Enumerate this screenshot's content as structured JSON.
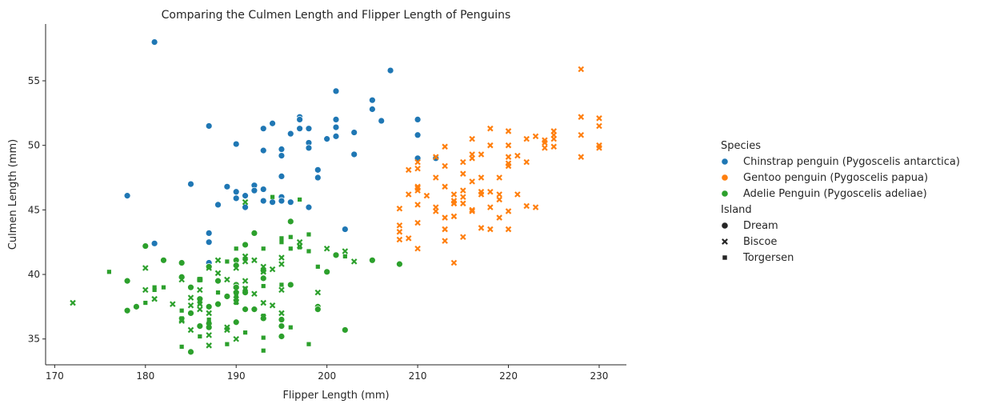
{
  "chart_data": {
    "type": "scatter",
    "title": "Comparing the Culmen Length and Flipper Length of Penguins",
    "xlabel": "Flipper Length (mm)",
    "ylabel": "Culmen Length (mm)",
    "xlim": [
      169,
      233
    ],
    "ylim": [
      33,
      59.4
    ],
    "xticks": [
      170,
      180,
      190,
      200,
      210,
      220,
      230
    ],
    "yticks": [
      35,
      40,
      45,
      50,
      55
    ],
    "grid": false,
    "legend": {
      "placement": "right",
      "species_title": "Species",
      "island_title": "Island",
      "species": [
        {
          "name": "Chinstrap penguin (Pygoscelis antarctica)",
          "color": "#1f77b4"
        },
        {
          "name": "Gentoo penguin (Pygoscelis papua)",
          "color": "#ff7f0e"
        },
        {
          "name": "Adelie Penguin (Pygoscelis adeliae)",
          "color": "#2ca02c"
        }
      ],
      "islands": [
        {
          "name": "Dream",
          "marker": "circle"
        },
        {
          "name": "Biscoe",
          "marker": "x"
        },
        {
          "name": "Torgersen",
          "marker": "square"
        }
      ]
    },
    "series": [
      {
        "name": "Chinstrap penguin (Pygoscelis antarctica)",
        "marker": "circle",
        "color": "#1f77b4",
        "points": [
          [
            181,
            58.0
          ],
          [
            207,
            55.8
          ],
          [
            201,
            54.2
          ],
          [
            205,
            53.5
          ],
          [
            205,
            52.8
          ],
          [
            210,
            52.0
          ],
          [
            206,
            51.9
          ],
          [
            197,
            52.2
          ],
          [
            197,
            52.0
          ],
          [
            201,
            52.0
          ],
          [
            187,
            51.5
          ],
          [
            194,
            51.7
          ],
          [
            193,
            51.3
          ],
          [
            197,
            51.3
          ],
          [
            198,
            51.3
          ],
          [
            203,
            51.0
          ],
          [
            196,
            50.9
          ],
          [
            201,
            51.4
          ],
          [
            190,
            50.1
          ],
          [
            198,
            50.2
          ],
          [
            195,
            49.7
          ],
          [
            198,
            49.8
          ],
          [
            193,
            49.6
          ],
          [
            200,
            50.5
          ],
          [
            201,
            50.7
          ],
          [
            210,
            50.8
          ],
          [
            195,
            49.2
          ],
          [
            203,
            49.3
          ],
          [
            210,
            49.0
          ],
          [
            212,
            49.0
          ],
          [
            199,
            48.1
          ],
          [
            199,
            47.5
          ],
          [
            195,
            47.6
          ],
          [
            185,
            47.0
          ],
          [
            192,
            46.9
          ],
          [
            192,
            46.5
          ],
          [
            193,
            46.6
          ],
          [
            189,
            46.8
          ],
          [
            190,
            46.4
          ],
          [
            191,
            46.1
          ],
          [
            195,
            46.0
          ],
          [
            190,
            45.9
          ],
          [
            195,
            45.7
          ],
          [
            191,
            45.2
          ],
          [
            193,
            45.7
          ],
          [
            194,
            45.6
          ],
          [
            196,
            45.6
          ],
          [
            198,
            45.2
          ],
          [
            178,
            46.1
          ],
          [
            188,
            45.4
          ],
          [
            187,
            43.2
          ],
          [
            187,
            42.5
          ],
          [
            181,
            42.4
          ],
          [
            187,
            40.9
          ],
          [
            202,
            43.5
          ]
        ]
      },
      {
        "name": "Gentoo penguin (Pygoscelis papua)",
        "marker": "x",
        "color": "#ff7f0e",
        "points": [
          [
            228,
            55.9
          ],
          [
            228,
            52.2
          ],
          [
            230,
            52.1
          ],
          [
            230,
            51.5
          ],
          [
            225,
            51.1
          ],
          [
            220,
            51.1
          ],
          [
            218,
            51.3
          ],
          [
            225,
            50.8
          ],
          [
            228,
            50.8
          ],
          [
            222,
            50.5
          ],
          [
            224,
            50.4
          ],
          [
            225,
            50.5
          ],
          [
            223,
            50.7
          ],
          [
            224,
            50.2
          ],
          [
            216,
            50.5
          ],
          [
            224,
            49.8
          ],
          [
            230,
            50.0
          ],
          [
            230,
            49.8
          ],
          [
            225,
            49.9
          ],
          [
            218,
            50.0
          ],
          [
            220,
            50.0
          ],
          [
            217,
            49.3
          ],
          [
            216,
            49.3
          ],
          [
            216,
            49.0
          ],
          [
            221,
            49.2
          ],
          [
            220,
            49.1
          ],
          [
            213,
            49.9
          ],
          [
            212,
            49.1
          ],
          [
            228,
            49.1
          ],
          [
            215,
            48.7
          ],
          [
            220,
            48.6
          ],
          [
            220,
            48.4
          ],
          [
            222,
            48.7
          ],
          [
            210,
            48.7
          ],
          [
            210,
            48.2
          ],
          [
            213,
            48.4
          ],
          [
            209,
            48.1
          ],
          [
            219,
            47.5
          ],
          [
            215,
            47.8
          ],
          [
            217,
            47.5
          ],
          [
            212,
            47.5
          ],
          [
            210,
            46.7
          ],
          [
            210,
            46.5
          ],
          [
            209,
            46.2
          ],
          [
            211,
            46.1
          ],
          [
            215,
            46.5
          ],
          [
            218,
            46.4
          ],
          [
            213,
            46.8
          ],
          [
            214,
            46.2
          ],
          [
            214,
            45.5
          ],
          [
            212,
            45.2
          ],
          [
            215,
            45.5
          ],
          [
            216,
            44.9
          ],
          [
            216,
            45.0
          ],
          [
            214,
            45.7
          ],
          [
            219,
            46.2
          ],
          [
            219,
            45.8
          ],
          [
            221,
            46.2
          ],
          [
            222,
            45.3
          ],
          [
            223,
            45.2
          ],
          [
            208,
            45.1
          ],
          [
            212,
            44.9
          ],
          [
            213,
            44.4
          ],
          [
            214,
            45.5
          ],
          [
            215,
            46.0
          ],
          [
            217,
            46.4
          ],
          [
            217,
            46.2
          ],
          [
            210,
            45.4
          ],
          [
            218,
            45.2
          ],
          [
            220,
            44.9
          ],
          [
            219,
            44.4
          ],
          [
            214,
            44.5
          ],
          [
            217,
            43.6
          ],
          [
            218,
            43.5
          ],
          [
            220,
            43.5
          ],
          [
            210,
            44.0
          ],
          [
            208,
            43.8
          ],
          [
            208,
            43.3
          ],
          [
            209,
            42.8
          ],
          [
            208,
            42.7
          ],
          [
            213,
            43.5
          ],
          [
            215,
            42.9
          ],
          [
            213,
            42.6
          ],
          [
            210,
            42.0
          ],
          [
            214,
            40.9
          ],
          [
            210,
            46.8
          ],
          [
            216,
            47.2
          ]
        ]
      },
      {
        "name": "Adelie Penguin (Pygoscelis adeliae)",
        "marker": "circle",
        "color": "#2ca02c",
        "points": [
          [
            196,
            44.1
          ],
          [
            192,
            43.2
          ],
          [
            180,
            42.2
          ],
          [
            182,
            41.1
          ],
          [
            184,
            40.9
          ],
          [
            187,
            40.6
          ],
          [
            191,
            42.3
          ],
          [
            190,
            41.1
          ],
          [
            190,
            40.7
          ],
          [
            193,
            39.7
          ],
          [
            193,
            40.3
          ],
          [
            188,
            39.5
          ],
          [
            184,
            39.8
          ],
          [
            185,
            39.0
          ],
          [
            186,
            39.6
          ],
          [
            178,
            39.5
          ],
          [
            190,
            39.2
          ],
          [
            190,
            39.0
          ],
          [
            190,
            38.6
          ],
          [
            191,
            38.6
          ],
          [
            189,
            38.3
          ],
          [
            186,
            38.1
          ],
          [
            187,
            37.5
          ],
          [
            188,
            37.7
          ],
          [
            191,
            37.3
          ],
          [
            192,
            37.3
          ],
          [
            179,
            37.5
          ],
          [
            178,
            37.2
          ],
          [
            185,
            37.0
          ],
          [
            187,
            36.2
          ],
          [
            186,
            36.0
          ],
          [
            187,
            35.9
          ],
          [
            190,
            36.3
          ],
          [
            195,
            36.5
          ],
          [
            195,
            36.0
          ],
          [
            195,
            35.2
          ],
          [
            199,
            37.5
          ],
          [
            199,
            37.3
          ],
          [
            200,
            40.2
          ],
          [
            201,
            41.5
          ],
          [
            196,
            39.2
          ],
          [
            205,
            41.1
          ],
          [
            208,
            40.8
          ],
          [
            202,
            35.7
          ],
          [
            185,
            34.0
          ],
          [
            193,
            36.6
          ]
        ]
      },
      {
        "name": "Adelie Penguin (Pygoscelis adeliae)",
        "marker": "x",
        "color": "#2ca02c",
        "points": [
          [
            172,
            37.8
          ],
          [
            191,
            45.6
          ],
          [
            197,
            42.5
          ],
          [
            197,
            42.2
          ],
          [
            195,
            41.3
          ],
          [
            195,
            40.8
          ],
          [
            193,
            40.6
          ],
          [
            193,
            40.2
          ],
          [
            192,
            41.1
          ],
          [
            191,
            41.4
          ],
          [
            191,
            41.0
          ],
          [
            190,
            40.5
          ],
          [
            188,
            41.1
          ],
          [
            188,
            40.1
          ],
          [
            187,
            40.5
          ],
          [
            189,
            39.6
          ],
          [
            190,
            38.8
          ],
          [
            190,
            38.1
          ],
          [
            190,
            37.9
          ],
          [
            191,
            39.5
          ],
          [
            191,
            38.9
          ],
          [
            193,
            37.8
          ],
          [
            194,
            37.6
          ],
          [
            195,
            38.8
          ],
          [
            192,
            38.5
          ],
          [
            186,
            39.6
          ],
          [
            186,
            38.8
          ],
          [
            185,
            38.2
          ],
          [
            185,
            37.6
          ],
          [
            184,
            39.6
          ],
          [
            183,
            37.7
          ],
          [
            181,
            38.1
          ],
          [
            180,
            38.8
          ],
          [
            180,
            40.5
          ],
          [
            186,
            37.7
          ],
          [
            187,
            37.0
          ],
          [
            184,
            36.5
          ],
          [
            184,
            36.4
          ],
          [
            185,
            35.7
          ],
          [
            187,
            35.3
          ],
          [
            187,
            34.5
          ],
          [
            189,
            35.9
          ],
          [
            189,
            35.7
          ],
          [
            190,
            35.0
          ],
          [
            193,
            36.7
          ],
          [
            195,
            37.0
          ],
          [
            199,
            38.6
          ],
          [
            200,
            42.0
          ],
          [
            202,
            41.8
          ],
          [
            203,
            41.0
          ],
          [
            194,
            40.4
          ],
          [
            186,
            37.3
          ]
        ]
      },
      {
        "name": "Adelie Penguin (Pygoscelis adeliae)",
        "marker": "square",
        "color": "#2ca02c",
        "points": [
          [
            194,
            46.0
          ],
          [
            197,
            45.8
          ],
          [
            198,
            43.1
          ],
          [
            196,
            42.9
          ],
          [
            195,
            42.8
          ],
          [
            196,
            42.0
          ],
          [
            195,
            42.5
          ],
          [
            198,
            41.8
          ],
          [
            197,
            42.1
          ],
          [
            193,
            42.0
          ],
          [
            190,
            42.0
          ],
          [
            191,
            41.2
          ],
          [
            189,
            41.0
          ],
          [
            202,
            41.4
          ],
          [
            199,
            40.6
          ],
          [
            195,
            39.2
          ],
          [
            193,
            39.1
          ],
          [
            191,
            38.9
          ],
          [
            191,
            38.6
          ],
          [
            190,
            38.3
          ],
          [
            188,
            38.6
          ],
          [
            186,
            37.8
          ],
          [
            184,
            37.2
          ],
          [
            182,
            39.0
          ],
          [
            181,
            39.0
          ],
          [
            181,
            38.8
          ],
          [
            176,
            40.2
          ],
          [
            180,
            37.8
          ],
          [
            184,
            36.6
          ],
          [
            184,
            34.4
          ],
          [
            187,
            36.5
          ],
          [
            186,
            35.2
          ],
          [
            189,
            34.6
          ],
          [
            191,
            35.5
          ],
          [
            193,
            35.1
          ],
          [
            193,
            34.1
          ],
          [
            196,
            35.9
          ],
          [
            198,
            34.6
          ],
          [
            199,
            37.3
          ],
          [
            190,
            37.8
          ],
          [
            187,
            36.2
          ],
          [
            193,
            36.8
          ]
        ]
      }
    ]
  }
}
